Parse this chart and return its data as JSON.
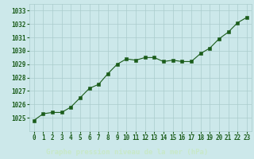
{
  "x": [
    0,
    1,
    2,
    3,
    4,
    5,
    6,
    7,
    8,
    9,
    10,
    11,
    12,
    13,
    14,
    15,
    16,
    17,
    18,
    19,
    20,
    21,
    22,
    23
  ],
  "y": [
    1024.8,
    1025.3,
    1025.4,
    1025.4,
    1025.8,
    1026.5,
    1027.2,
    1027.5,
    1028.3,
    1029.0,
    1029.4,
    1029.3,
    1029.5,
    1029.5,
    1029.2,
    1029.3,
    1029.2,
    1029.2,
    1029.8,
    1030.2,
    1030.9,
    1031.4,
    1032.1,
    1032.5
  ],
  "line_color": "#1a5c1a",
  "marker_color": "#1a5c1a",
  "bg_color": "#cce8ea",
  "grid_color": "#aacccc",
  "bottom_bar_color": "#2d6e2d",
  "xlabel": "Graphe pression niveau de la mer (hPa)",
  "xlabel_color": "#c8e8c8",
  "ylim_min": 1024.0,
  "ylim_max": 1033.5,
  "yticks": [
    1025,
    1026,
    1027,
    1028,
    1029,
    1030,
    1031,
    1032,
    1033
  ],
  "xticks": [
    0,
    1,
    2,
    3,
    4,
    5,
    6,
    7,
    8,
    9,
    10,
    11,
    12,
    13,
    14,
    15,
    16,
    17,
    18,
    19,
    20,
    21,
    22,
    23
  ],
  "tick_label_color": "#1a5c1a",
  "xtick_fontsize": 5.5,
  "ytick_fontsize": 5.5
}
